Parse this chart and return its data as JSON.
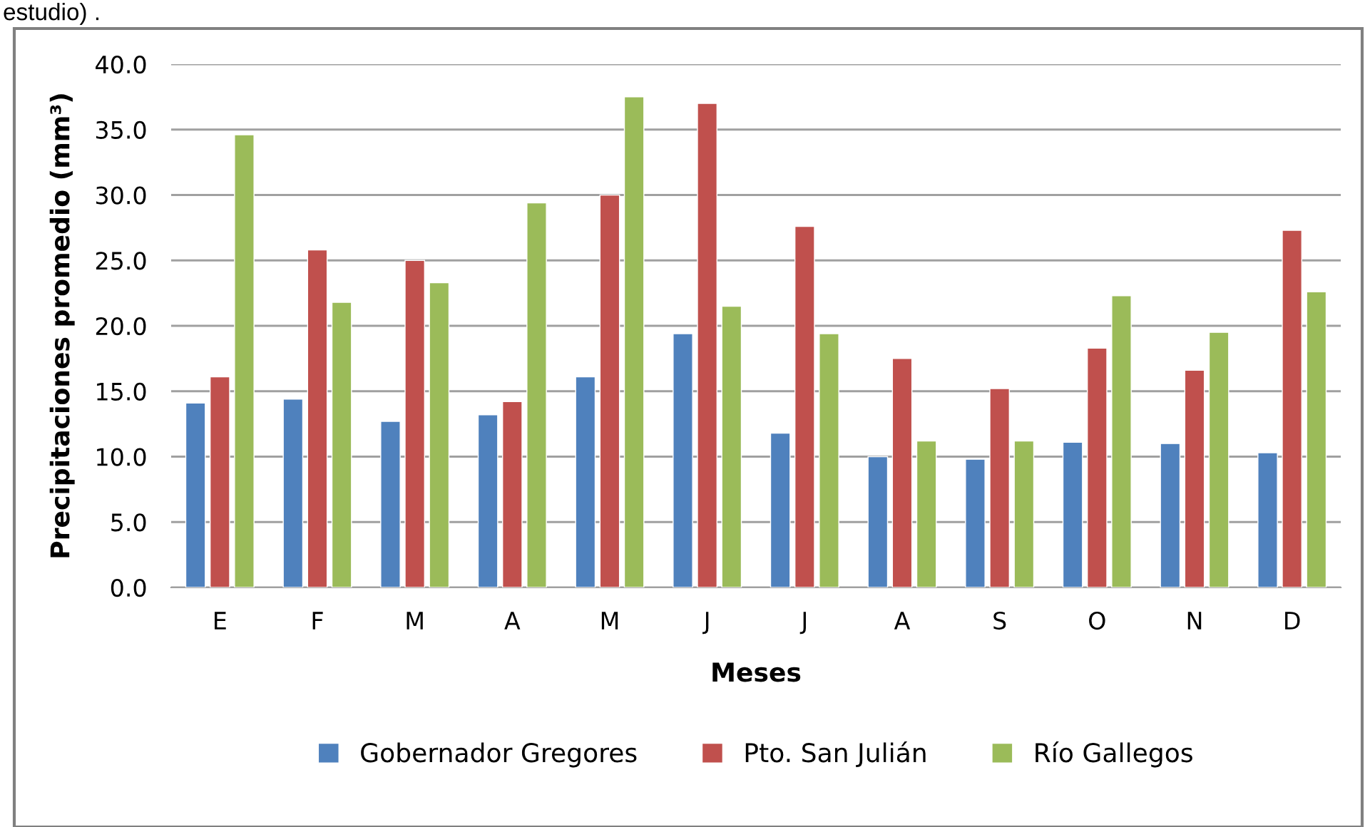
{
  "chart_data": {
    "type": "bar",
    "annotations": [
      "estudio) ."
    ],
    "xlabel": "Meses",
    "ylabel": "Precipitaciones promedio (mm³)",
    "categories": [
      "E",
      "F",
      "M",
      "A",
      "M",
      "J",
      "J",
      "A",
      "S",
      "O",
      "N",
      "D"
    ],
    "series": [
      {
        "name": "Gobernador Gregores",
        "color": "#4f81bd",
        "values": [
          14.1,
          14.4,
          12.7,
          13.2,
          16.1,
          19.4,
          11.8,
          10.0,
          9.8,
          11.1,
          11.0,
          10.3
        ]
      },
      {
        "name": "Pto. San Julián",
        "color": "#c0504d",
        "values": [
          16.1,
          25.8,
          25.0,
          14.2,
          30.0,
          37.0,
          27.6,
          17.5,
          15.2,
          18.3,
          16.6,
          27.3
        ]
      },
      {
        "name": "Río Gallegos",
        "color": "#9bbb59",
        "values": [
          34.6,
          21.8,
          23.3,
          29.4,
          37.5,
          21.5,
          19.4,
          11.2,
          11.2,
          22.3,
          19.5,
          22.6
        ]
      }
    ],
    "ylim": [
      0,
      40
    ],
    "yticks": [
      {
        "value": 0,
        "label": "0.0"
      },
      {
        "value": 5,
        "label": "5.0"
      },
      {
        "value": 10,
        "label": "10.0"
      },
      {
        "value": 15,
        "label": "15.0"
      },
      {
        "value": 20,
        "label": "20.0"
      },
      {
        "value": 25,
        "label": "25.0"
      },
      {
        "value": 30,
        "label": "30.0"
      },
      {
        "value": 35,
        "label": "35.0"
      },
      {
        "value": 40,
        "label": "40.0"
      }
    ],
    "grid": "y",
    "legend": "bottom"
  }
}
